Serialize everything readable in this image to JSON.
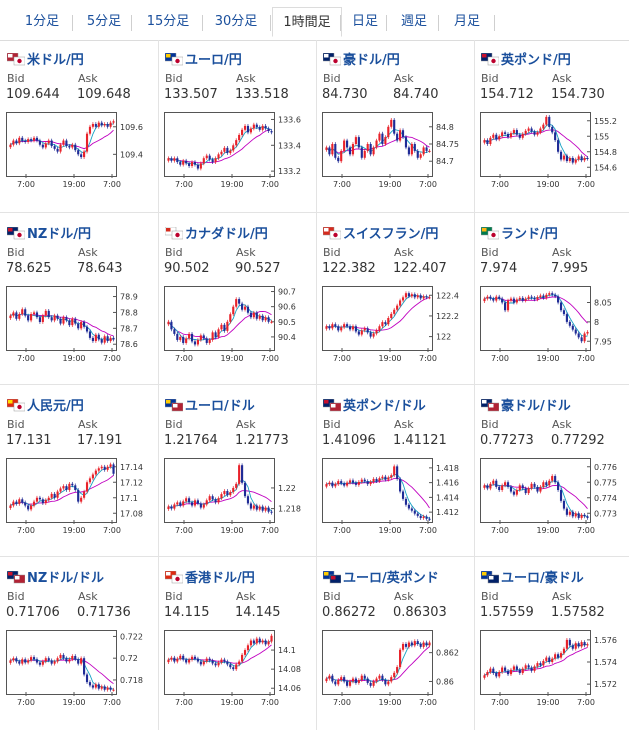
{
  "tabs": [
    {
      "label": "1分足"
    },
    {
      "label": "5分足"
    },
    {
      "label": "15分足"
    },
    {
      "label": "30分足"
    },
    {
      "label": "1時間足"
    },
    {
      "label": "日足"
    },
    {
      "label": "週足"
    },
    {
      "label": "月足"
    }
  ],
  "active_tab": 4,
  "labels": {
    "bid": "Bid",
    "ask": "Ask"
  },
  "colors": {
    "link": "#1a4f9c",
    "up": "#e8222a",
    "down": "#1f2b96",
    "ma_long": "#c000c0",
    "ma_short": "#18a3c4"
  },
  "pairs": [
    {
      "name": "米ドル/円",
      "flag": "us-jp-flag",
      "bid": "109.644",
      "ask": "109.648"
    },
    {
      "name": "ユーロ/円",
      "flag": "eu-jp-flag",
      "bid": "133.507",
      "ask": "133.518"
    },
    {
      "name": "豪ドル/円",
      "flag": "au-jp-flag",
      "bid": "84.730",
      "ask": "84.740"
    },
    {
      "name": "英ポンド/円",
      "flag": "gb-jp-flag",
      "bid": "154.712",
      "ask": "154.730"
    },
    {
      "name": "NZドル/円",
      "flag": "nz-jp-flag",
      "bid": "78.625",
      "ask": "78.643"
    },
    {
      "name": "カナダドル/円",
      "flag": "ca-jp-flag",
      "bid": "90.502",
      "ask": "90.527"
    },
    {
      "name": "スイスフラン/円",
      "flag": "ch-jp-flag",
      "bid": "122.382",
      "ask": "122.407"
    },
    {
      "name": "ランド/円",
      "flag": "za-jp-flag",
      "bid": "7.974",
      "ask": "7.995"
    },
    {
      "name": "人民元/円",
      "flag": "cn-jp-flag",
      "bid": "17.131",
      "ask": "17.191"
    },
    {
      "name": "ユーロ/ドル",
      "flag": "eu-us-flag",
      "bid": "1.21764",
      "ask": "1.21773"
    },
    {
      "name": "英ポンド/ドル",
      "flag": "gb-us-flag",
      "bid": "1.41096",
      "ask": "1.41121"
    },
    {
      "name": "豪ドル/ドル",
      "flag": "au-us-flag",
      "bid": "0.77273",
      "ask": "0.77292"
    },
    {
      "name": "NZドル/ドル",
      "flag": "nz-us-flag",
      "bid": "0.71706",
      "ask": "0.71736"
    },
    {
      "name": "香港ドル/円",
      "flag": "hk-jp-flag",
      "bid": "14.115",
      "ask": "14.145"
    },
    {
      "name": "ユーロ/英ポンド",
      "flag": "eu-gb-flag",
      "bid": "0.86272",
      "ask": "0.86303"
    },
    {
      "name": "ユーロ/豪ドル",
      "flag": "eu-au-flag",
      "bid": "1.57559",
      "ask": "1.57582"
    }
  ],
  "chart_data": [
    {
      "type": "candlestick",
      "x_ticks": [
        "7:00",
        "19:00",
        "7:00"
      ],
      "y_ticks": [
        "109.6",
        "109.4"
      ],
      "ylim": [
        109.25,
        109.7
      ],
      "closes": [
        109.47,
        109.5,
        109.48,
        109.52,
        109.5,
        109.49,
        109.51,
        109.5,
        109.52,
        109.5,
        109.47,
        109.45,
        109.48,
        109.5,
        109.46,
        109.44,
        109.42,
        109.47,
        109.5,
        109.46,
        109.45,
        109.47,
        109.43,
        109.4,
        109.38,
        109.42,
        109.55,
        109.6,
        109.62,
        109.6,
        109.63,
        109.61,
        109.62,
        109.6,
        109.63,
        109.64
      ]
    },
    {
      "type": "candlestick",
      "x_ticks": [
        "7:00",
        "19:00",
        "7:00"
      ],
      "y_ticks": [
        "133.6",
        "133.4",
        "133.2"
      ],
      "ylim": [
        133.17,
        133.65
      ],
      "closes": [
        133.3,
        133.28,
        133.3,
        133.27,
        133.25,
        133.28,
        133.26,
        133.24,
        133.27,
        133.25,
        133.22,
        133.26,
        133.3,
        133.32,
        133.29,
        133.27,
        133.3,
        133.33,
        133.35,
        133.38,
        133.34,
        133.36,
        133.4,
        133.44,
        133.48,
        133.52,
        133.55,
        133.5,
        133.53,
        133.56,
        133.54,
        133.52,
        133.55,
        133.53,
        133.51,
        133.5
      ]
    },
    {
      "type": "candlestick",
      "x_ticks": [
        "7:00",
        "19:00",
        "7:00"
      ],
      "y_ticks": [
        "84.8",
        "84.75",
        "84.7"
      ],
      "ylim": [
        84.66,
        84.84
      ],
      "closes": [
        84.74,
        84.72,
        84.75,
        84.71,
        84.7,
        84.73,
        84.76,
        84.74,
        84.72,
        84.75,
        84.77,
        84.74,
        84.71,
        84.73,
        84.75,
        84.72,
        84.74,
        84.76,
        84.78,
        84.75,
        84.77,
        84.8,
        84.82,
        84.78,
        84.76,
        84.79,
        84.77,
        84.74,
        84.72,
        84.75,
        84.73,
        84.71,
        84.72,
        84.74,
        84.73,
        84.73
      ]
    },
    {
      "type": "candlestick",
      "x_ticks": [
        "7:00",
        "19:00",
        "7:00"
      ],
      "y_ticks": [
        "155.2",
        "155",
        "154.8",
        "154.6"
      ],
      "ylim": [
        154.5,
        155.3
      ],
      "closes": [
        154.95,
        154.9,
        154.98,
        155.02,
        154.96,
        155.0,
        155.05,
        155.03,
        154.99,
        155.04,
        155.08,
        155.02,
        154.98,
        155.03,
        155.07,
        155.1,
        155.06,
        155.02,
        155.05,
        155.1,
        155.15,
        155.25,
        155.12,
        155.05,
        154.95,
        154.8,
        154.7,
        154.75,
        154.68,
        154.72,
        154.66,
        154.7,
        154.74,
        154.69,
        154.72,
        154.71
      ]
    },
    {
      "type": "candlestick",
      "x_ticks": [
        "7:00",
        "19:00",
        "7:00"
      ],
      "y_ticks": [
        "78.9",
        "78.8",
        "78.7",
        "78.6"
      ],
      "ylim": [
        78.57,
        78.96
      ],
      "closes": [
        78.78,
        78.8,
        78.76,
        78.79,
        78.82,
        78.78,
        78.75,
        78.79,
        78.8,
        78.77,
        78.74,
        78.78,
        78.81,
        78.77,
        78.75,
        78.78,
        78.76,
        78.73,
        78.77,
        78.75,
        78.72,
        78.76,
        78.73,
        78.7,
        78.74,
        78.71,
        78.68,
        78.64,
        78.62,
        78.66,
        78.63,
        78.61,
        78.65,
        78.62,
        78.64,
        78.63
      ]
    },
    {
      "type": "candlestick",
      "x_ticks": [
        "7:00",
        "19:00",
        "7:00"
      ],
      "y_ticks": [
        "90.7",
        "90.6",
        "90.5",
        "90.4"
      ],
      "ylim": [
        90.32,
        90.73
      ],
      "closes": [
        90.5,
        90.45,
        90.42,
        90.38,
        90.4,
        90.36,
        90.39,
        90.42,
        90.37,
        90.35,
        90.38,
        90.41,
        90.39,
        90.36,
        90.38,
        90.43,
        90.4,
        90.45,
        90.48,
        90.44,
        90.5,
        90.55,
        90.6,
        90.65,
        90.62,
        90.58,
        90.6,
        90.56,
        90.53,
        90.56,
        90.52,
        90.54,
        90.51,
        90.53,
        90.5,
        90.5
      ]
    },
    {
      "type": "candlestick",
      "x_ticks": [
        "7:00",
        "19:00",
        "7:00"
      ],
      "y_ticks": [
        "122.4",
        "122.2",
        "122"
      ],
      "ylim": [
        121.88,
        122.48
      ],
      "closes": [
        122.1,
        122.08,
        122.12,
        122.1,
        122.06,
        122.09,
        122.12,
        122.1,
        122.07,
        122.1,
        122.05,
        122.02,
        122.06,
        122.08,
        122.04,
        122.0,
        122.03,
        122.06,
        122.1,
        122.14,
        122.12,
        122.18,
        122.22,
        122.26,
        122.3,
        122.35,
        122.38,
        122.42,
        122.39,
        122.41,
        122.38,
        122.4,
        122.37,
        122.39,
        122.38,
        122.38
      ]
    },
    {
      "type": "candlestick",
      "x_ticks": [
        "7:00",
        "19:00",
        "7:00"
      ],
      "y_ticks": [
        "8.05",
        "8",
        "7.95"
      ],
      "ylim": [
        7.93,
        8.09
      ],
      "closes": [
        8.06,
        8.065,
        8.06,
        8.055,
        8.065,
        8.06,
        8.05,
        8.03,
        8.055,
        8.06,
        8.05,
        8.058,
        8.062,
        8.055,
        8.06,
        8.065,
        8.062,
        8.058,
        8.064,
        8.068,
        8.062,
        8.07,
        8.074,
        8.07,
        8.066,
        8.05,
        8.03,
        8.02,
        8.0,
        7.99,
        7.98,
        7.97,
        7.96,
        7.95,
        7.97,
        7.974
      ]
    },
    {
      "type": "candlestick",
      "x_ticks": [
        "7:00",
        "19:00",
        "7:00"
      ],
      "y_ticks": [
        "17.14",
        "17.12",
        "17.1",
        "17.08"
      ],
      "ylim": [
        17.07,
        17.15
      ],
      "closes": [
        17.09,
        17.095,
        17.092,
        17.098,
        17.094,
        17.09,
        17.085,
        17.09,
        17.095,
        17.1,
        17.098,
        17.093,
        17.097,
        17.1,
        17.105,
        17.1,
        17.108,
        17.112,
        17.115,
        17.11,
        17.118,
        17.116,
        17.11,
        17.095,
        17.1,
        17.108,
        17.12,
        17.125,
        17.13,
        17.135,
        17.138,
        17.14,
        17.136,
        17.14,
        17.143,
        17.131
      ]
    },
    {
      "type": "candlestick",
      "x_ticks": [
        "7:00",
        "19:00",
        "7:00"
      ],
      "y_ticks": [
        "1.22",
        "1.218"
      ],
      "ylim": [
        1.2168,
        1.2228
      ],
      "closes": [
        1.2182,
        1.218,
        1.2184,
        1.2186,
        1.2183,
        1.2187,
        1.219,
        1.2186,
        1.2183,
        1.2188,
        1.2185,
        1.2181,
        1.2184,
        1.2188,
        1.2192,
        1.2189,
        1.2186,
        1.219,
        1.2194,
        1.2197,
        1.2193,
        1.2196,
        1.22,
        1.2204,
        1.2222,
        1.2205,
        1.2192,
        1.2185,
        1.218,
        1.2183,
        1.2179,
        1.2182,
        1.2178,
        1.2181,
        1.2177,
        1.2176
      ]
    },
    {
      "type": "candlestick",
      "x_ticks": [
        "7:00",
        "19:00",
        "7:00"
      ],
      "y_ticks": [
        "1.418",
        "1.416",
        "1.414",
        "1.412"
      ],
      "ylim": [
        1.4108,
        1.4192
      ],
      "closes": [
        1.4158,
        1.416,
        1.4155,
        1.4158,
        1.4162,
        1.4159,
        1.4156,
        1.416,
        1.4163,
        1.416,
        1.4157,
        1.4161,
        1.4164,
        1.4162,
        1.4158,
        1.4161,
        1.4165,
        1.4162,
        1.4166,
        1.4168,
        1.4164,
        1.4167,
        1.417,
        1.4182,
        1.4165,
        1.4148,
        1.4138,
        1.413,
        1.4125,
        1.4122,
        1.4118,
        1.4115,
        1.4112,
        1.4114,
        1.4111,
        1.411
      ]
    },
    {
      "type": "candlestick",
      "x_ticks": [
        "7:00",
        "19:00",
        "7:00"
      ],
      "y_ticks": [
        "0.776",
        "0.775",
        "0.774",
        "0.773"
      ],
      "ylim": [
        0.7725,
        0.7765
      ],
      "closes": [
        0.7748,
        0.7746,
        0.7749,
        0.7751,
        0.7747,
        0.7745,
        0.7748,
        0.775,
        0.7747,
        0.7744,
        0.7742,
        0.7745,
        0.7748,
        0.7746,
        0.7743,
        0.7746,
        0.7749,
        0.7747,
        0.7744,
        0.7747,
        0.775,
        0.7748,
        0.7751,
        0.7754,
        0.775,
        0.7745,
        0.7738,
        0.7733,
        0.7729,
        0.7731,
        0.7728,
        0.773,
        0.7727,
        0.7729,
        0.7728,
        0.7727
      ]
    },
    {
      "type": "candlestick",
      "x_ticks": [
        "7:00",
        "19:00",
        "7:00"
      ],
      "y_ticks": [
        "0.722",
        "0.72",
        "0.718"
      ],
      "ylim": [
        0.7168,
        0.7225
      ],
      "closes": [
        0.7198,
        0.72,
        0.7197,
        0.7195,
        0.7199,
        0.7196,
        0.7198,
        0.7201,
        0.7199,
        0.7196,
        0.7194,
        0.7197,
        0.72,
        0.7198,
        0.7195,
        0.7197,
        0.72,
        0.7203,
        0.72,
        0.7197,
        0.7199,
        0.7202,
        0.7199,
        0.7195,
        0.72,
        0.7185,
        0.7178,
        0.7175,
        0.7173,
        0.7176,
        0.7172,
        0.7174,
        0.7171,
        0.7173,
        0.7171,
        0.7171
      ]
    },
    {
      "type": "candlestick",
      "x_ticks": [
        "7:00",
        "19:00",
        "7:00"
      ],
      "y_ticks": [
        "14.1",
        "14.08",
        "14.06"
      ],
      "ylim": [
        14.055,
        14.12
      ],
      "closes": [
        14.09,
        14.092,
        14.088,
        14.091,
        14.094,
        14.09,
        14.087,
        14.09,
        14.093,
        14.091,
        14.088,
        14.085,
        14.088,
        14.091,
        14.089,
        14.086,
        14.084,
        14.087,
        14.09,
        14.088,
        14.085,
        14.082,
        14.08,
        14.085,
        14.088,
        14.095,
        14.1,
        14.105,
        14.11,
        14.107,
        14.112,
        14.108,
        14.11,
        14.106,
        14.109,
        14.115
      ]
    },
    {
      "type": "candlestick",
      "x_ticks": [
        "7:00",
        "19:00",
        "7:00"
      ],
      "y_ticks": [
        "0.862",
        "0.86"
      ],
      "ylim": [
        0.8592,
        0.8635
      ],
      "closes": [
        0.8602,
        0.8604,
        0.86,
        0.8598,
        0.8601,
        0.8603,
        0.86,
        0.8597,
        0.86,
        0.8602,
        0.8599,
        0.8601,
        0.8604,
        0.8602,
        0.8599,
        0.8597,
        0.86,
        0.8602,
        0.8604,
        0.8601,
        0.8598,
        0.86,
        0.8603,
        0.8606,
        0.861,
        0.8622,
        0.8626,
        0.8624,
        0.8627,
        0.8625,
        0.8628,
        0.8626,
        0.8624,
        0.8627,
        0.8625,
        0.8627
      ]
    },
    {
      "type": "candlestick",
      "x_ticks": [
        "7:00",
        "19:00",
        "7:00"
      ],
      "y_ticks": [
        "1.576",
        "1.574",
        "1.572"
      ],
      "ylim": [
        1.5712,
        1.5768
      ],
      "closes": [
        1.5728,
        1.5731,
        1.5734,
        1.573,
        1.5727,
        1.5731,
        1.5735,
        1.5732,
        1.5729,
        1.5733,
        1.5736,
        1.5733,
        1.573,
        1.5734,
        1.5737,
        1.5735,
        1.5732,
        1.5736,
        1.5739,
        1.5737,
        1.5741,
        1.5744,
        1.574,
        1.5743,
        1.5747,
        1.5744,
        1.5748,
        1.5752,
        1.576,
        1.5755,
        1.5752,
        1.5757,
        1.5754,
        1.5758,
        1.5755,
        1.5756
      ]
    }
  ]
}
